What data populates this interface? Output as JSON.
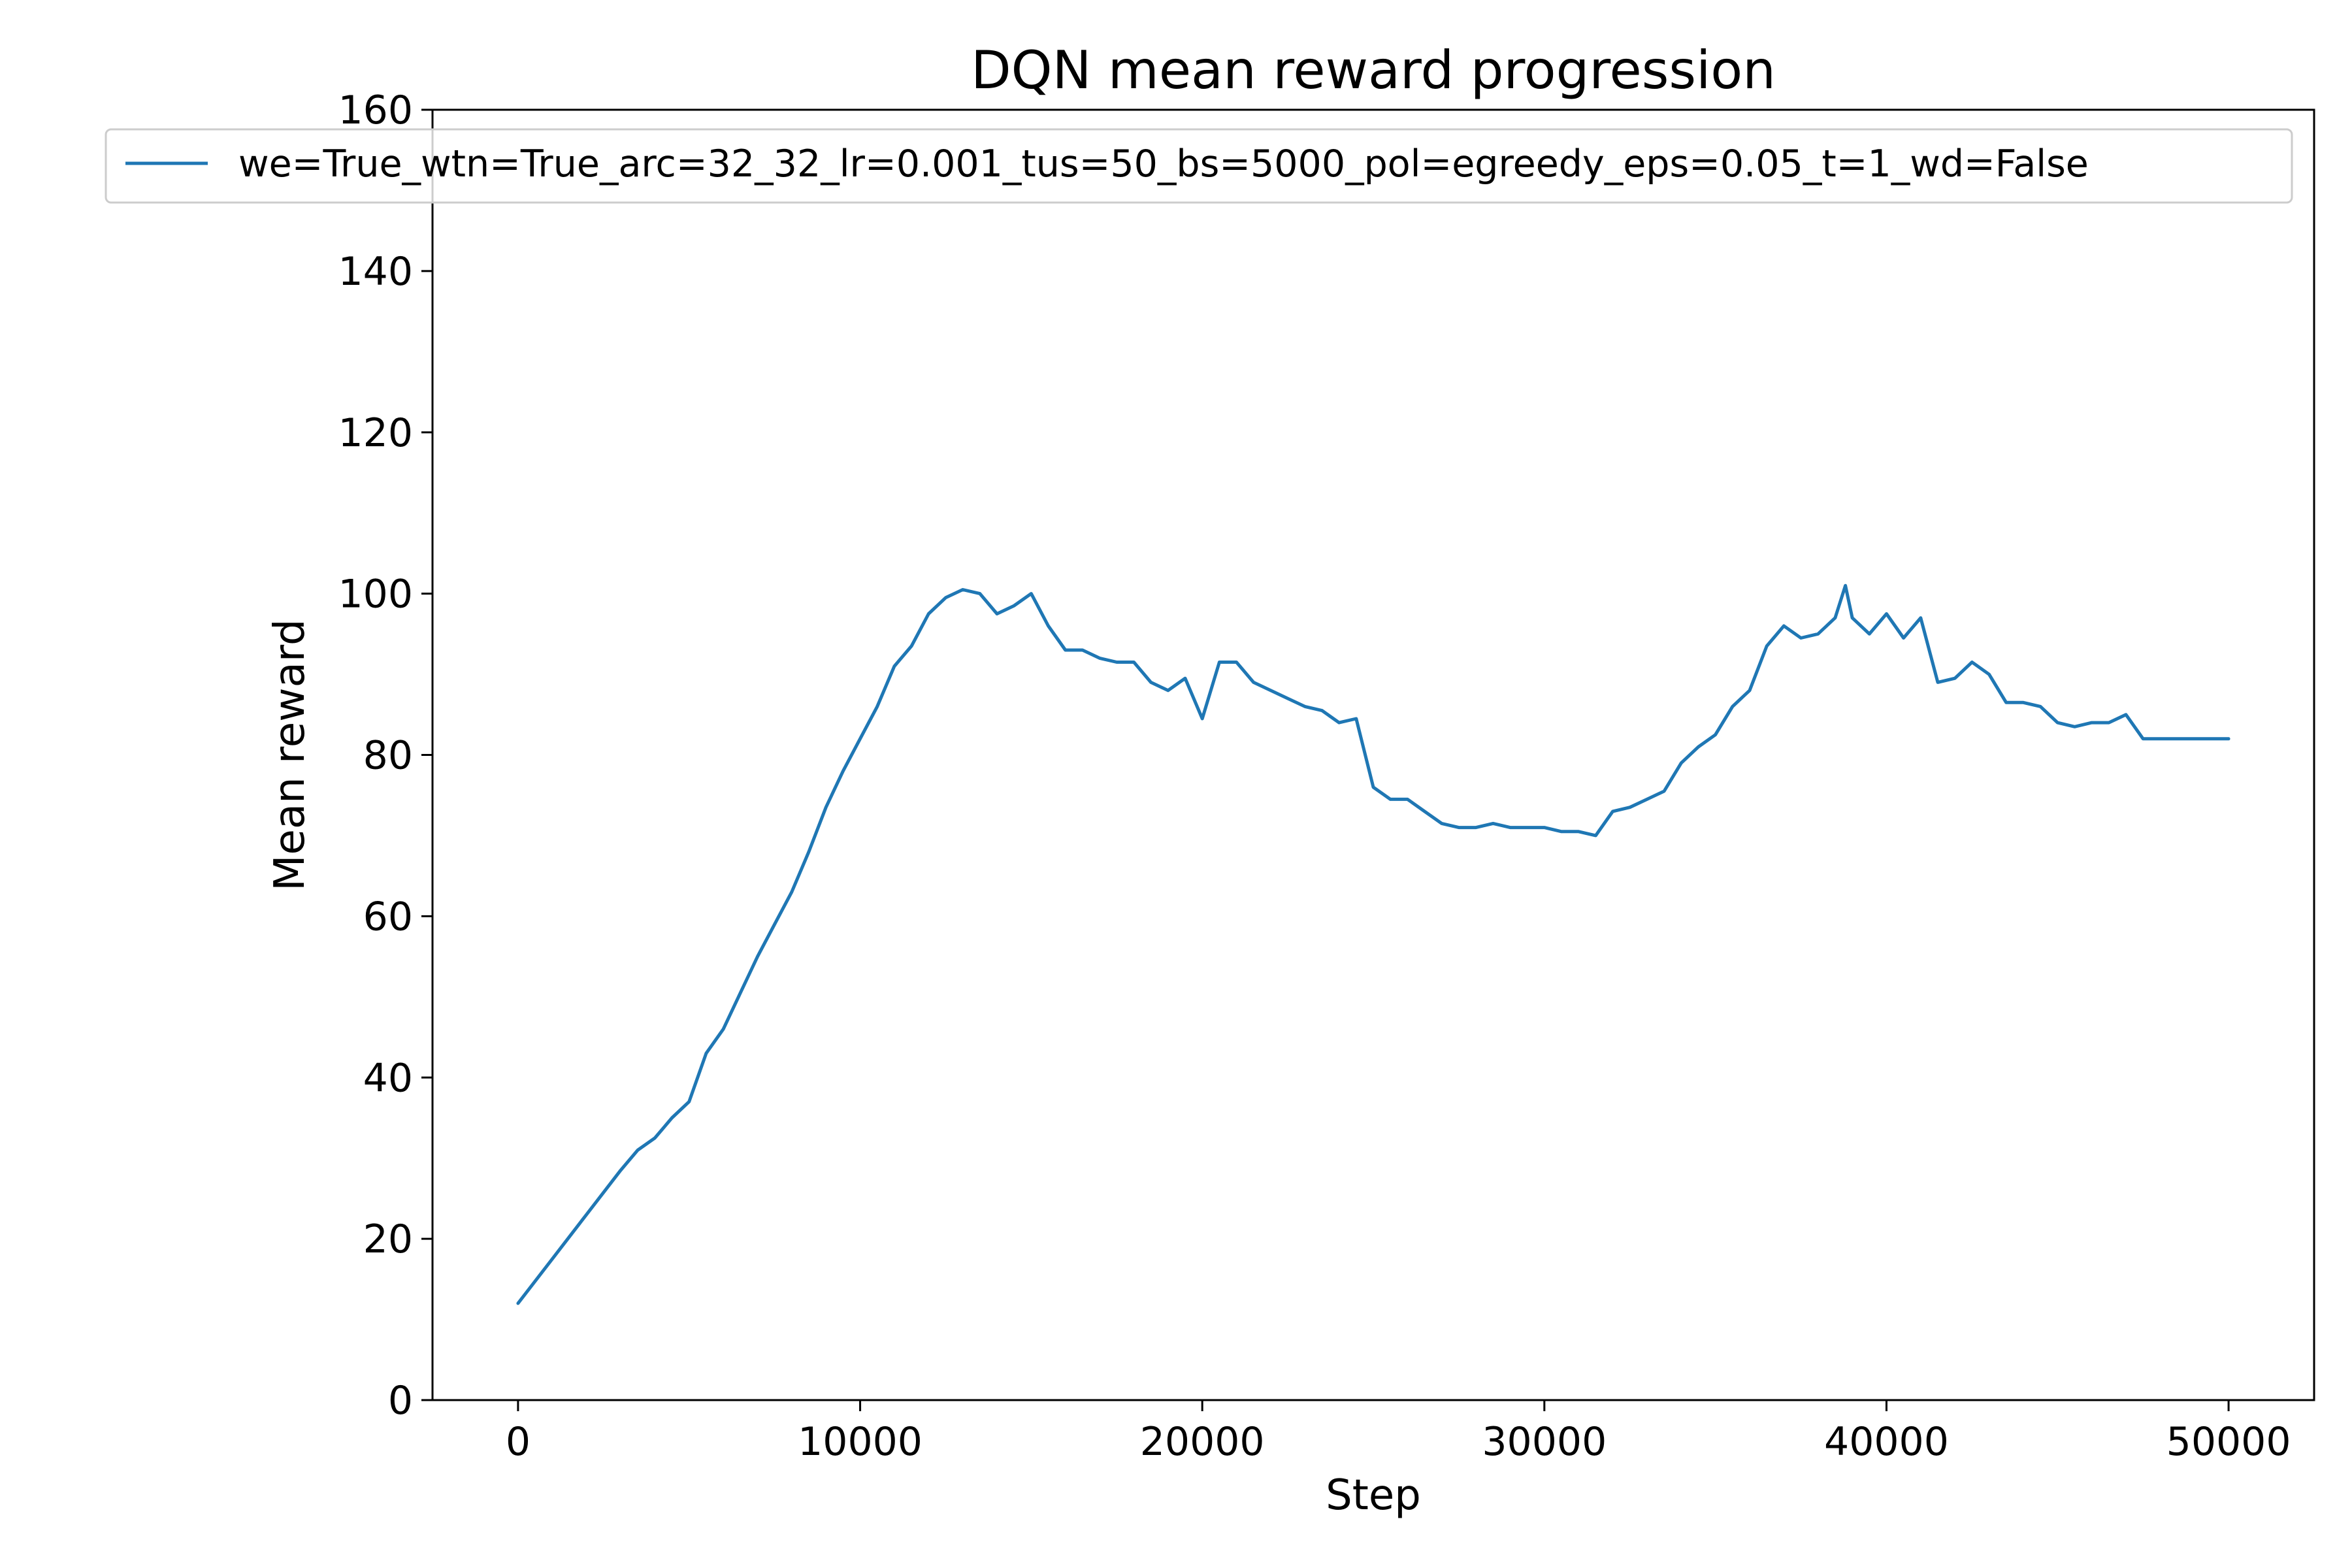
{
  "chart_data": {
    "type": "line",
    "title": "DQN mean reward progression",
    "xlabel": "Step",
    "ylabel": "Mean reward",
    "xlim": [
      -2500,
      52500
    ],
    "ylim": [
      0,
      160
    ],
    "xticks": [
      0,
      10000,
      20000,
      30000,
      40000,
      50000
    ],
    "yticks": [
      0,
      20,
      40,
      60,
      80,
      100,
      120,
      140,
      160
    ],
    "grid": false,
    "legend_position": "top",
    "series": [
      {
        "name": "we=True_wtn=True_arc=32_32_lr=0.001_tus=50_bs=5000_pol=egreedy_eps=0.05_t=1_wd=False",
        "color": "#1f77b4",
        "x": [
          0,
          1000,
          2000,
          3000,
          3500,
          4000,
          4500,
          5000,
          5500,
          6000,
          6500,
          7000,
          7500,
          8000,
          8500,
          9000,
          9500,
          10000,
          10500,
          11000,
          11500,
          12000,
          12500,
          13000,
          13500,
          14000,
          14500,
          15000,
          15500,
          16000,
          16500,
          17000,
          17500,
          18000,
          18500,
          19000,
          19500,
          20000,
          20500,
          21000,
          21500,
          22000,
          22500,
          23000,
          23500,
          24000,
          24500,
          25000,
          25500,
          26000,
          26500,
          27000,
          27500,
          28000,
          28500,
          29000,
          29500,
          30000,
          30500,
          31000,
          31500,
          32000,
          32500,
          33000,
          33500,
          34000,
          34500,
          35000,
          35500,
          36000,
          36500,
          37000,
          37500,
          38000,
          38500,
          38800,
          39000,
          39500,
          40000,
          40500,
          41000,
          41500,
          42000,
          42500,
          43000,
          43500,
          44000,
          44500,
          45000,
          45500,
          46000,
          46500,
          47000,
          47500,
          48000,
          49000,
          50000
        ],
        "y": [
          12,
          17.5,
          23,
          28.5,
          31,
          32.5,
          35,
          37,
          43,
          46,
          50.5,
          55,
          59,
          63,
          68,
          73.5,
          78,
          82,
          86,
          91,
          93.5,
          97.5,
          99.5,
          100.5,
          100,
          97.5,
          98.5,
          100,
          96,
          93,
          93,
          92,
          91.5,
          91.5,
          89,
          88,
          89.5,
          84.5,
          91.5,
          91.5,
          89,
          88,
          87,
          86,
          85.5,
          84,
          84.5,
          76,
          74.5,
          74.5,
          73,
          71.5,
          71,
          71,
          71.5,
          71,
          71,
          71,
          70.5,
          70.5,
          70,
          73,
          73.5,
          74.5,
          75.5,
          79,
          81,
          82.5,
          86,
          88,
          93.5,
          96,
          94.5,
          95,
          97,
          101,
          97,
          95,
          97.5,
          94.5,
          97,
          89,
          89.5,
          91.5,
          90,
          86.5,
          86.5,
          86,
          84,
          83.5,
          84,
          84,
          85,
          82,
          82,
          82,
          82
        ]
      }
    ]
  }
}
